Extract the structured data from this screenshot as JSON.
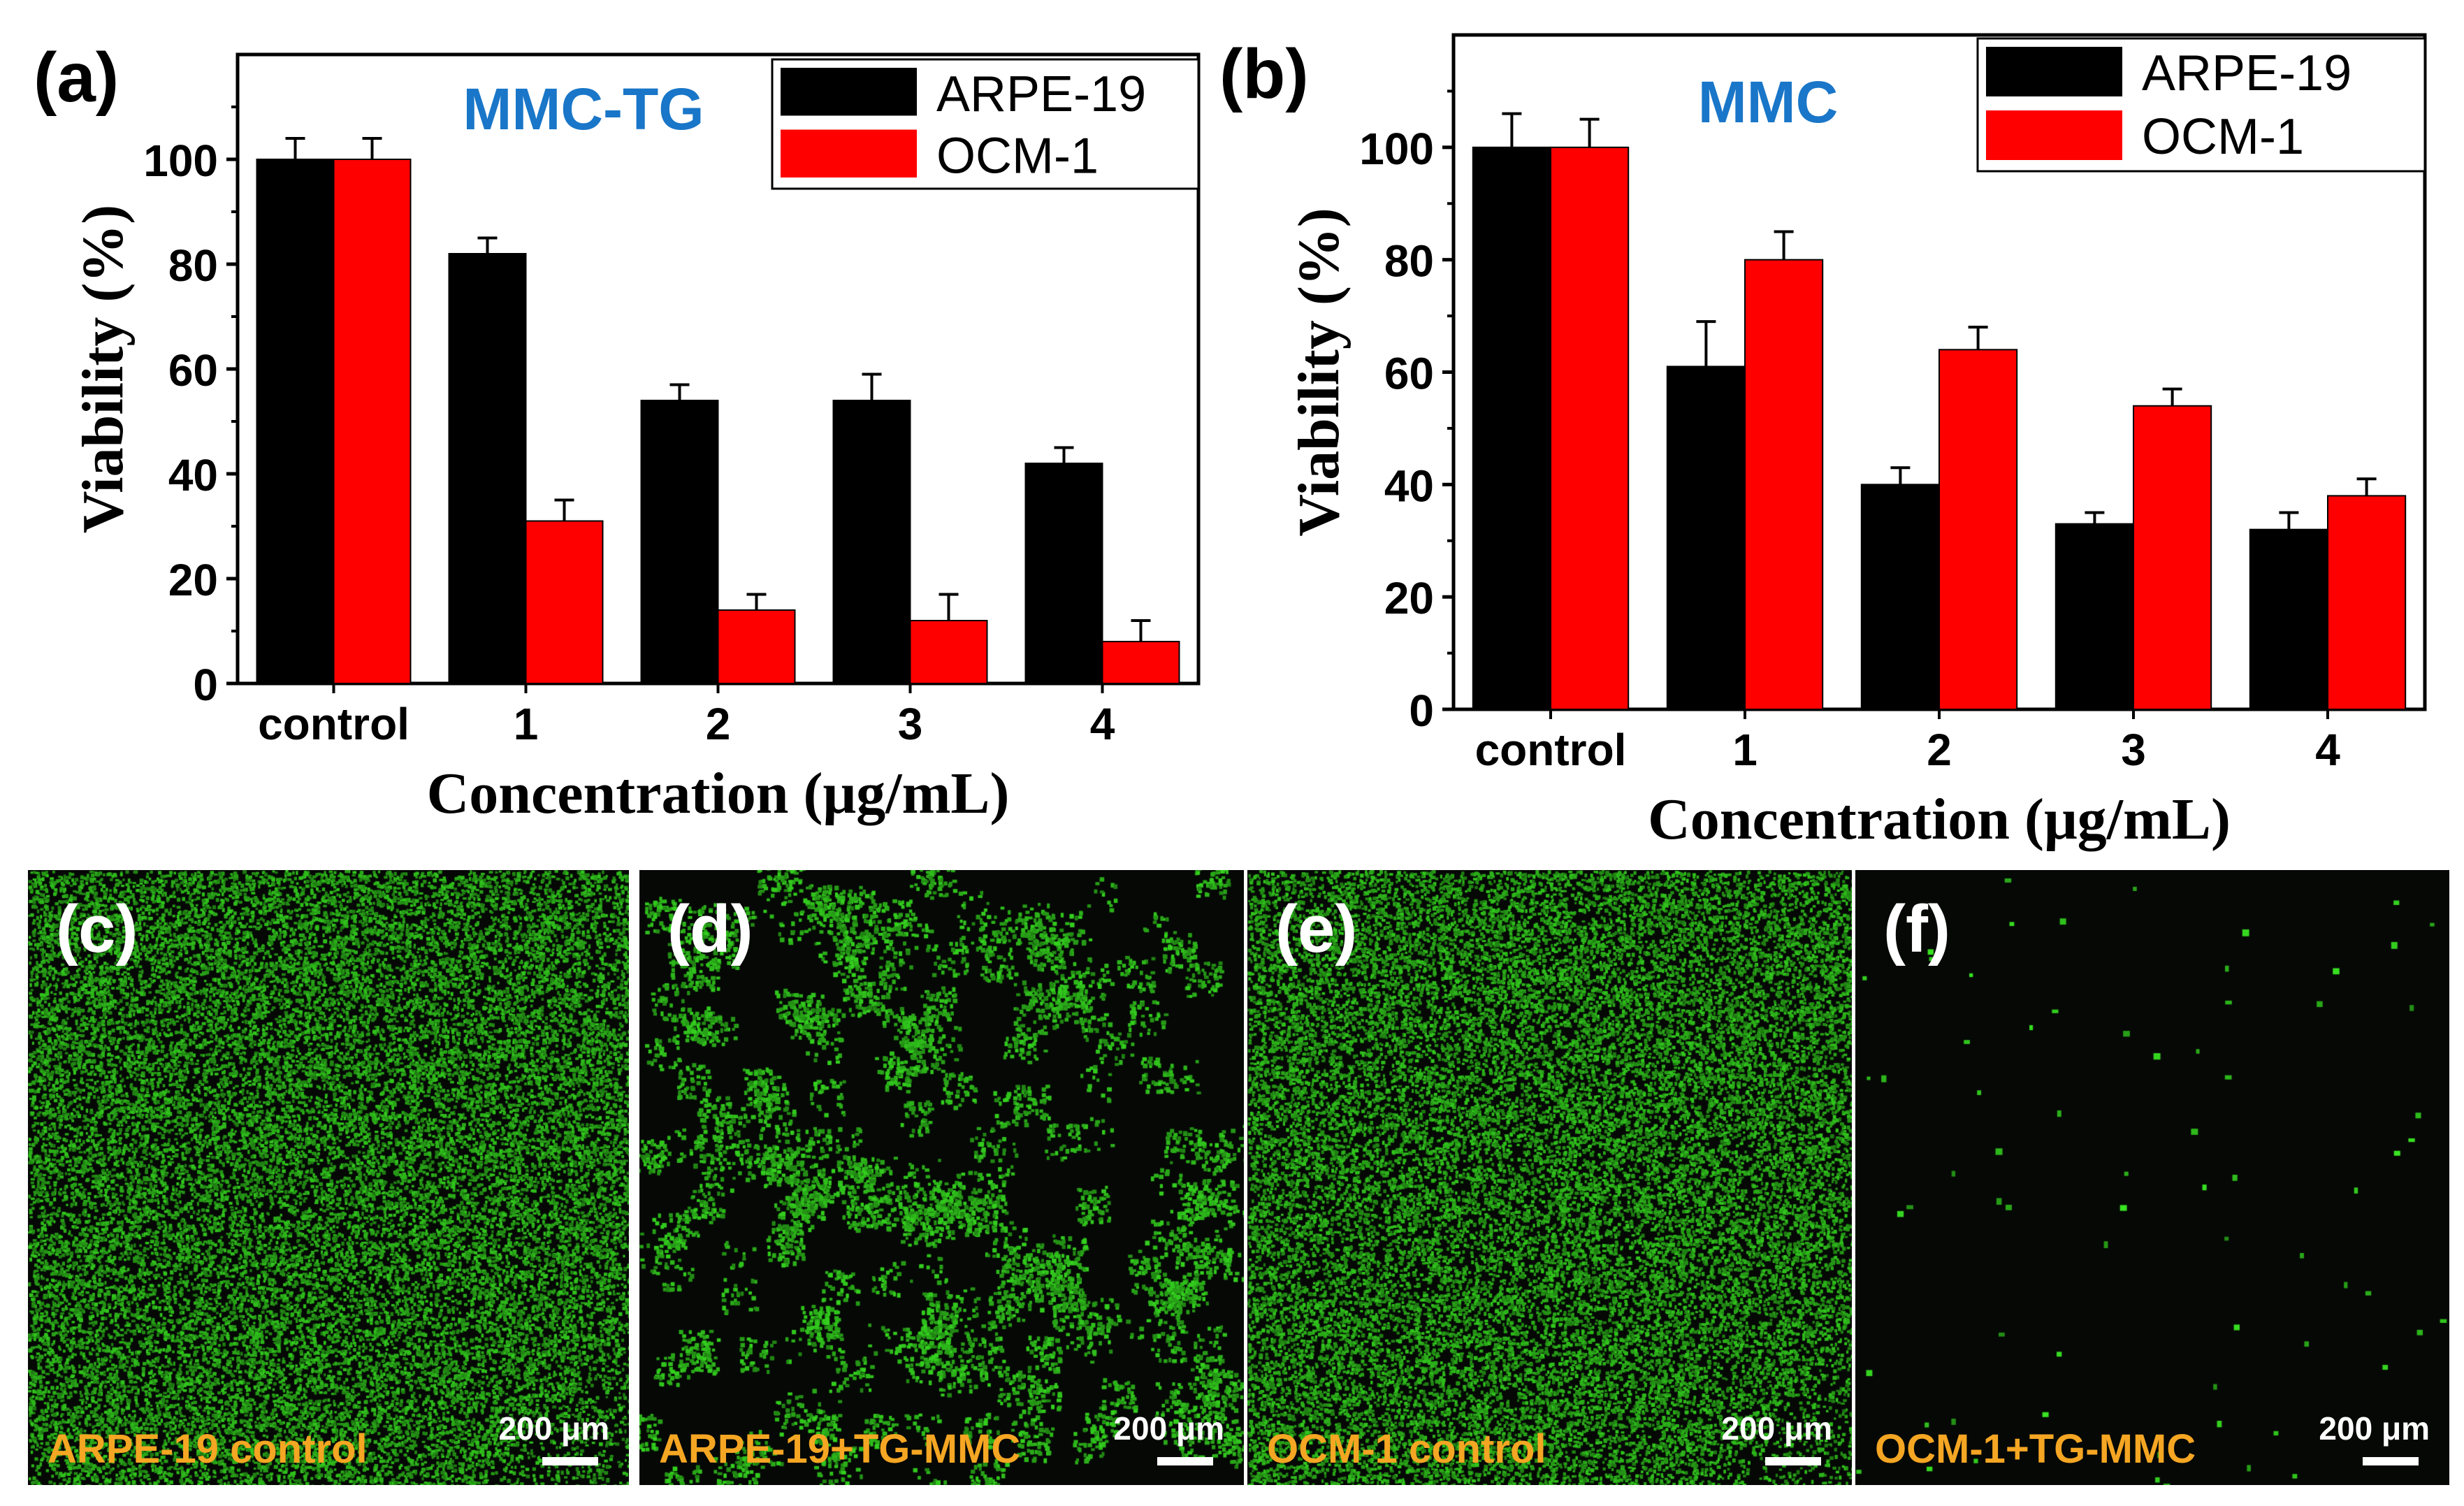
{
  "chart_data": [
    {
      "panel_label": "(a)",
      "type": "bar",
      "title": "MMC-TG",
      "title_color": "#1976c8",
      "xlabel": "Concentration (μg/mL)",
      "ylabel": "Viability (%)",
      "ylim": [
        0,
        120
      ],
      "yticks": [
        0,
        20,
        40,
        60,
        80,
        100
      ],
      "categories": [
        "control",
        "1",
        "2",
        "3",
        "4"
      ],
      "legend_position": "top-right",
      "series": [
        {
          "name": "ARPE-19",
          "color": "#000000",
          "values": [
            100,
            82,
            54,
            54,
            42
          ],
          "errors": [
            4,
            3,
            3,
            5,
            3
          ]
        },
        {
          "name": "OCM-1",
          "color": "#ff0000",
          "values": [
            100,
            31,
            14,
            12,
            8
          ],
          "errors": [
            4,
            4,
            3,
            5,
            4
          ]
        }
      ]
    },
    {
      "panel_label": "(b)",
      "type": "bar",
      "title": "MMC",
      "title_color": "#1976c8",
      "xlabel": "Concentration (μg/mL)",
      "ylabel": "Viability (%)",
      "ylim": [
        0,
        120
      ],
      "yticks": [
        0,
        20,
        40,
        60,
        80,
        100
      ],
      "categories": [
        "control",
        "1",
        "2",
        "3",
        "4"
      ],
      "legend_position": "top-right",
      "series": [
        {
          "name": "ARPE-19",
          "color": "#000000",
          "values": [
            100,
            61,
            40,
            33,
            32
          ],
          "errors": [
            6,
            8,
            3,
            2,
            3
          ]
        },
        {
          "name": "OCM-1",
          "color": "#ff0000",
          "values": [
            100,
            80,
            64,
            54,
            38
          ],
          "errors": [
            5,
            5,
            4,
            3,
            3
          ]
        }
      ]
    }
  ],
  "micrographs": [
    {
      "label": "(c)",
      "caption": "ARPE-19  control",
      "scale": "200 μm",
      "density": "high"
    },
    {
      "label": "(d)",
      "caption": "ARPE-19+TG-MMC",
      "scale": "200 μm",
      "density": "clustered"
    },
    {
      "label": "(e)",
      "caption": "OCM-1  control",
      "scale": "200 μm",
      "density": "high"
    },
    {
      "label": "(f)",
      "caption": "OCM-1+TG-MMC",
      "scale": "200 μm",
      "density": "sparse"
    }
  ]
}
